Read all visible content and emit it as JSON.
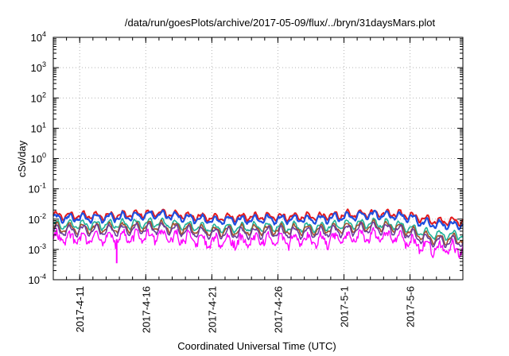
{
  "chart_data": {
    "type": "line",
    "title": "/data/run/goesPlots/archive/2017-05-09/flux/../bryn/31daysMars.plot",
    "xlabel": "Coordinated Universal Time (UTC)",
    "ylabel": "cSv/day",
    "yscale": "log",
    "grid": true,
    "legend": "none",
    "xlim": [
      "2017-04-09",
      "2017-05-10"
    ],
    "ylim": [
      0.0001,
      10000
    ],
    "x_ticks": [
      "2017-4-11",
      "2017-4-16",
      "2017-4-21",
      "2017-4-26",
      "2017-5-1",
      "2017-5-6"
    ],
    "y_ticks": [
      {
        "base": "10",
        "exp": "-4",
        "value": 0.0001
      },
      {
        "base": "10",
        "exp": "-3",
        "value": 0.001
      },
      {
        "base": "10",
        "exp": "-2",
        "value": 0.01
      },
      {
        "base": "10",
        "exp": "-1",
        "value": 0.1
      },
      {
        "base": "10",
        "exp": "0",
        "value": 1
      },
      {
        "base": "10",
        "exp": "1",
        "value": 10
      },
      {
        "base": "10",
        "exp": "2",
        "value": 100
      },
      {
        "base": "10",
        "exp": "3",
        "value": 1000
      },
      {
        "base": "10",
        "exp": "4",
        "value": 10000
      }
    ],
    "series": [
      {
        "color": "#e41a1c",
        "width": 2.0,
        "noise": 0.0,
        "x": [
          "2017-04-09",
          "2017-04-13",
          "2017-04-17",
          "2017-04-21",
          "2017-04-25",
          "2017-04-29",
          "2017-05-03",
          "2017-05-05",
          "2017-05-06",
          "2017-05-07",
          "2017-05-08",
          "2017-05-10"
        ],
        "values": [
          0.013,
          0.013,
          0.016,
          0.011,
          0.012,
          0.012,
          0.016,
          0.015,
          0.013,
          0.01,
          0.0085,
          0.0085
        ]
      },
      {
        "color": "#1f4fe0",
        "width": 2.2,
        "noise": 0.0,
        "x": [
          "2017-04-09",
          "2017-04-13",
          "2017-04-17",
          "2017-04-21",
          "2017-04-25",
          "2017-04-29",
          "2017-05-03",
          "2017-05-05",
          "2017-05-06",
          "2017-05-07",
          "2017-05-08",
          "2017-05-10"
        ],
        "values": [
          0.011,
          0.011,
          0.014,
          0.009,
          0.01,
          0.01,
          0.014,
          0.013,
          0.011,
          0.0075,
          0.0065,
          0.0065
        ]
      },
      {
        "color": "#1fb39a",
        "width": 1.6,
        "noise": 0.0,
        "x": [
          "2017-04-09",
          "2017-04-13",
          "2017-04-17",
          "2017-04-21",
          "2017-04-25",
          "2017-04-29",
          "2017-05-03",
          "2017-05-05",
          "2017-05-06",
          "2017-05-07",
          "2017-05-08",
          "2017-05-10"
        ],
        "values": [
          0.0065,
          0.0065,
          0.0075,
          0.005,
          0.0055,
          0.0055,
          0.0075,
          0.0065,
          0.005,
          0.0035,
          0.003,
          0.003
        ]
      },
      {
        "color": "#a0522d",
        "width": 1.6,
        "noise": 0.0,
        "x": [
          "2017-04-09",
          "2017-04-13",
          "2017-04-17",
          "2017-04-21",
          "2017-04-25",
          "2017-04-29",
          "2017-05-03",
          "2017-05-05",
          "2017-05-06",
          "2017-05-07",
          "2017-05-08",
          "2017-05-10"
        ],
        "values": [
          0.005,
          0.005,
          0.006,
          0.004,
          0.0045,
          0.0045,
          0.006,
          0.0055,
          0.004,
          0.0028,
          0.0022,
          0.0022
        ]
      },
      {
        "color": "#6a3d9a",
        "width": 1.6,
        "noise": 0.0,
        "x": [
          "2017-04-09",
          "2017-04-13",
          "2017-04-17",
          "2017-04-21",
          "2017-04-25",
          "2017-04-29",
          "2017-05-03",
          "2017-05-05",
          "2017-05-06",
          "2017-05-07",
          "2017-05-08",
          "2017-05-10"
        ],
        "values": [
          0.0042,
          0.0042,
          0.005,
          0.0033,
          0.0036,
          0.0036,
          0.005,
          0.0045,
          0.0032,
          0.0022,
          0.0018,
          0.0018
        ]
      },
      {
        "color": "#ff00ff",
        "width": 1.4,
        "noise": 0.55,
        "x": [
          "2017-04-09",
          "2017-04-13",
          "2017-04-17",
          "2017-04-21",
          "2017-04-25",
          "2017-04-29",
          "2017-05-03",
          "2017-05-05",
          "2017-05-06",
          "2017-05-07",
          "2017-05-08",
          "2017-05-10"
        ],
        "values": [
          0.003,
          0.0028,
          0.0035,
          0.0022,
          0.0025,
          0.0024,
          0.0035,
          0.003,
          0.0022,
          0.0016,
          0.0013,
          0.0013
        ]
      }
    ],
    "annotations": [
      {
        "x": "2017-04-13.8",
        "value": 0.00035,
        "color": "#ff00ff"
      }
    ]
  }
}
